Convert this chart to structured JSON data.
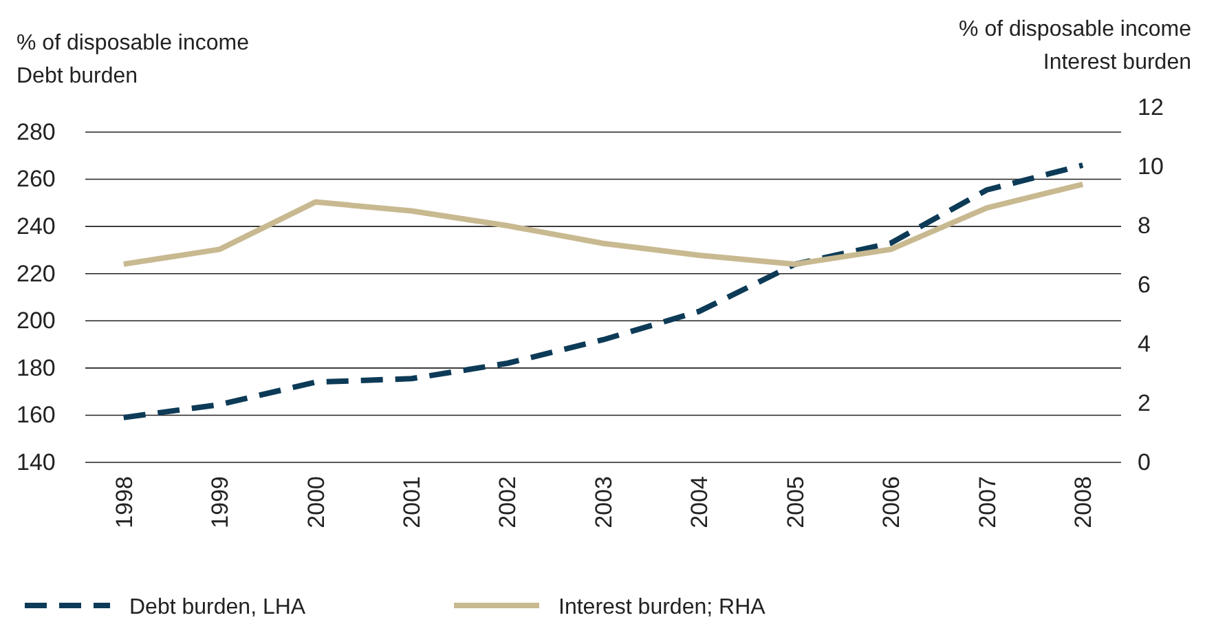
{
  "chart_data": {
    "type": "line",
    "ylabel": "% of disposable income\nDebt burden",
    "y2label": "% of disposable income\nInterest burden",
    "categories": [
      "1998",
      "1999",
      "2000",
      "2001",
      "2002",
      "2003",
      "2004",
      "2005",
      "2006",
      "2007",
      "2008"
    ],
    "ylim": [
      140,
      280
    ],
    "yticks": [
      140,
      160,
      180,
      200,
      220,
      240,
      260,
      280
    ],
    "y2lim": [
      0,
      12
    ],
    "y2ticks": [
      0,
      2,
      4,
      6,
      8,
      10,
      12
    ],
    "grid": "y",
    "legend": "bottom",
    "series": [
      {
        "name": "Debt burden, LHA",
        "color": "#0d3b57",
        "line_style": "dashed",
        "values": [
          159,
          164.5,
          174,
          175.5,
          182,
          192,
          204,
          224,
          233,
          255.5,
          266
        ]
      },
      {
        "name": "Interest burden; RHA",
        "color": "#c8b990",
        "line_style": "solid",
        "axis": "y2",
        "values": [
          6.7,
          7.2,
          8.8,
          8.5,
          8.0,
          7.4,
          7.0,
          6.7,
          7.2,
          8.6,
          9.4
        ]
      }
    ]
  }
}
